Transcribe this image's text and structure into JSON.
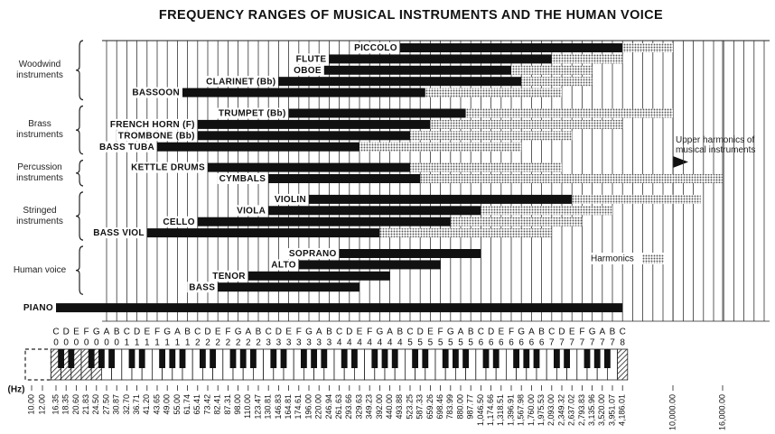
{
  "chart_data": {
    "type": "range",
    "title": "FREQUENCY RANGES OF MUSICAL INSTRUMENTS AND THE HUMAN VOICE",
    "x_unit": "(Hz)",
    "x_scale": "log",
    "xlim": [
      10,
      16000
    ],
    "xticks": [
      {
        "value": 10,
        "label": "10.00"
      },
      {
        "value": 12,
        "label": "12.00"
      },
      16.35,
      18.35,
      {
        "value": 20.6,
        "label": "20.60"
      },
      21.83,
      {
        "value": 24.5,
        "label": "24.50"
      },
      {
        "value": 27.5,
        "label": "27.50"
      },
      30.87,
      {
        "value": 32.7,
        "label": "32.70"
      },
      36.71,
      {
        "value": 41.2,
        "label": "41.20"
      },
      43.65,
      {
        "value": 49,
        "label": "49.00"
      },
      {
        "value": 55,
        "label": "55.00"
      },
      61.74,
      65.41,
      73.42,
      82.41,
      87.31,
      {
        "value": 98,
        "label": "98.00"
      },
      {
        "value": 110,
        "label": "110.00"
      },
      123.47,
      130.81,
      146.83,
      164.81,
      174.61,
      {
        "value": 196,
        "label": "196.00"
      },
      {
        "value": 220,
        "label": "220.00"
      },
      246.94,
      261.63,
      293.66,
      329.63,
      349.23,
      {
        "value": 392,
        "label": "392.00"
      },
      {
        "value": 440,
        "label": "440.00"
      },
      493.88,
      523.25,
      587.33,
      659.26,
      698.46,
      783.99,
      {
        "value": 880,
        "label": "880.00"
      },
      987.77,
      {
        "value": 1046.5,
        "label": "1,046.50"
      },
      {
        "value": 1174.66,
        "label": "1,174.66"
      },
      {
        "value": 1318.51,
        "label": "1,318.51"
      },
      {
        "value": 1396.91,
        "label": "1,396.91"
      },
      {
        "value": 1567.98,
        "label": "1,567.98"
      },
      {
        "value": 1760,
        "label": "1,760.00"
      },
      {
        "value": 1975.53,
        "label": "1,975.53"
      },
      {
        "value": 2093,
        "label": "2,093.00"
      },
      {
        "value": 2349.32,
        "label": "2,349.32"
      },
      {
        "value": 2637.02,
        "label": "2,637.02"
      },
      {
        "value": 2793.83,
        "label": "2,793.83"
      },
      {
        "value": 3135.96,
        "label": "3,135.96"
      },
      {
        "value": 3520,
        "label": "3,520.00"
      },
      {
        "value": 3951.07,
        "label": "3,951.07"
      },
      {
        "value": 4186.01,
        "label": "4,186.01"
      },
      {
        "value": 10000,
        "label": "10,000.00"
      },
      {
        "value": 16000,
        "label": "16,000.00"
      }
    ],
    "note_letters": [
      "C",
      "D",
      "E",
      "F",
      "G",
      "A",
      "B",
      "C",
      "D",
      "E",
      "F",
      "G",
      "A",
      "B",
      "C",
      "D",
      "E",
      "F",
      "G",
      "A",
      "B",
      "C",
      "D",
      "E",
      "F",
      "G",
      "A",
      "B",
      "C",
      "D",
      "E",
      "F",
      "G",
      "A",
      "B",
      "C",
      "D",
      "E",
      "F",
      "G",
      "A",
      "B",
      "C",
      "D",
      "E",
      "F",
      "G",
      "A",
      "B",
      "C",
      "D",
      "E",
      "F",
      "G",
      "A",
      "B",
      "C"
    ],
    "note_octaves": [
      "0",
      "0",
      "0",
      "0",
      "0",
      "0",
      "0",
      "1",
      "1",
      "1",
      "1",
      "1",
      "1",
      "1",
      "2",
      "2",
      "2",
      "2",
      "2",
      "2",
      "2",
      "3",
      "3",
      "3",
      "3",
      "3",
      "3",
      "3",
      "4",
      "4",
      "4",
      "4",
      "4",
      "4",
      "4",
      "5",
      "5",
      "5",
      "5",
      "5",
      "5",
      "5",
      "6",
      "6",
      "6",
      "6",
      "6",
      "6",
      "6",
      "7",
      "7",
      "7",
      "7",
      "7",
      "7",
      "7",
      "8"
    ],
    "color": "#111111",
    "harmonics_color": "#555555",
    "harmonics_label": "Harmonics",
    "annotation": "Upper harmonics of musical instruments",
    "groups": [
      {
        "label": "Woodwind instruments",
        "series": [
          {
            "name": "PICCOLO",
            "values": [
              493.88,
              4186.01
            ],
            "harmonics": 10000
          },
          {
            "name": "FLUTE",
            "values": [
              246.94,
              2093
            ],
            "harmonics": 4186.01
          },
          {
            "name": "OBOE",
            "values": [
              233.08,
              1396.91
            ],
            "harmonics": 3135.96
          },
          {
            "name": "CLARINET (Bb)",
            "values": [
              146.83,
              1567.98
            ],
            "harmonics": 3135.96
          },
          {
            "name": "BASSOON",
            "values": [
              58.27,
              622.25
            ],
            "harmonics": 2349.32
          }
        ]
      },
      {
        "label": "Brass instruments",
        "series": [
          {
            "name": "TRUMPET (Bb)",
            "values": [
              164.81,
              932.33
            ],
            "harmonics": 10000
          },
          {
            "name": "FRENCH HORN (F)",
            "values": [
              65.41,
              659.26
            ],
            "harmonics": 4186.01
          },
          {
            "name": "TROMBONE (Bb)",
            "values": [
              65.41,
              523.25
            ],
            "harmonics": 2637.02
          },
          {
            "name": "BASS TUBA",
            "values": [
              43.65,
              329.63
            ],
            "harmonics": 1567.98
          }
        ]
      },
      {
        "label": "Percussion instruments",
        "series": [
          {
            "name": "KETTLE DRUMS",
            "values": [
              73.42,
              523.25
            ],
            "harmonics": 2349.32
          },
          {
            "name": "CYMBALS",
            "values": [
              130.81,
              587.33
            ],
            "harmonics": 16000
          }
        ]
      },
      {
        "label": "Stringed instruments",
        "series": [
          {
            "name": "VIOLIN",
            "values": [
              196,
              2637.02
            ],
            "harmonics": 13000
          },
          {
            "name": "VIOLA",
            "values": [
              130.81,
              1046.5
            ],
            "harmonics": 3951.07
          },
          {
            "name": "CELLO",
            "values": [
              65.41,
              783.99
            ],
            "harmonics": 2793.83
          },
          {
            "name": "BASS VIOL",
            "values": [
              41.2,
              392
            ],
            "harmonics": 2093
          }
        ]
      },
      {
        "label": "Human voice",
        "series": [
          {
            "name": "SOPRANO",
            "values": [
              261.63,
              1046.5
            ]
          },
          {
            "name": "ALTO",
            "values": [
              174.61,
              698.46
            ]
          },
          {
            "name": "TENOR",
            "values": [
              110,
              440
            ]
          },
          {
            "name": "BASS",
            "values": [
              82.41,
              329.63
            ]
          }
        ]
      },
      {
        "series": [
          {
            "name": "PIANO",
            "values": [
              16.35,
              4186.01
            ]
          }
        ]
      }
    ]
  }
}
